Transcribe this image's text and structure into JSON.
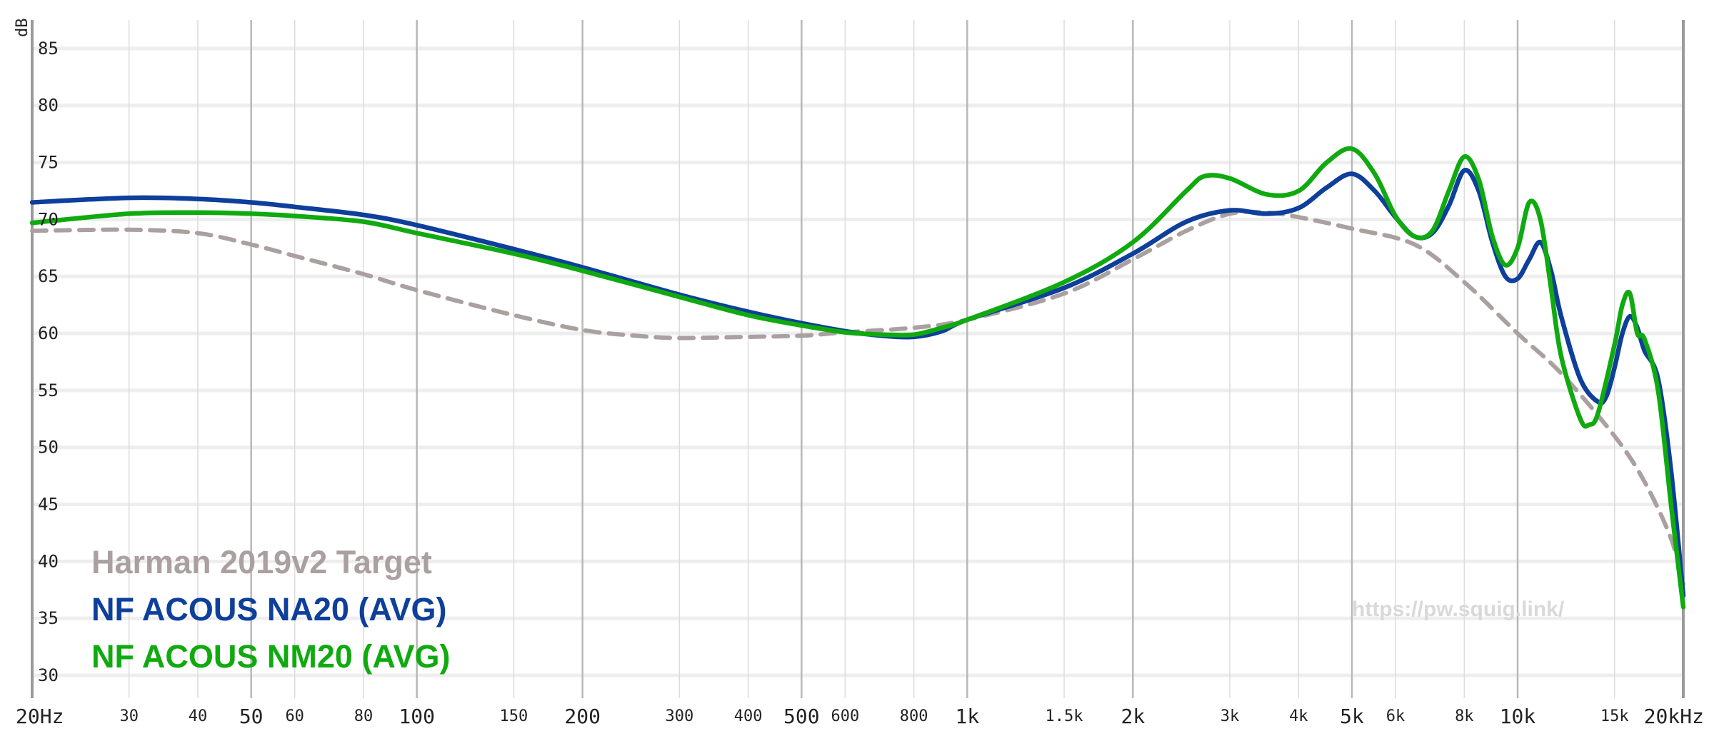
{
  "chart_data": {
    "type": "line",
    "title": "",
    "xlabel": "",
    "ylabel": "dB",
    "x_scale": "log",
    "xlim": [
      20,
      20000
    ],
    "ylim": [
      28,
      88
    ],
    "grid": true,
    "legend_position": "bottom-left",
    "watermark": "https://pw.squig.link/",
    "y_ticks": [
      {
        "value": 85,
        "label": "85"
      },
      {
        "value": 80,
        "label": "80"
      },
      {
        "value": 75,
        "label": "75"
      },
      {
        "value": 70,
        "label": "70"
      },
      {
        "value": 65,
        "label": "65"
      },
      {
        "value": 60,
        "label": "60"
      },
      {
        "value": 55,
        "label": "55"
      },
      {
        "value": 50,
        "label": "50"
      },
      {
        "value": 45,
        "label": "45"
      },
      {
        "value": 40,
        "label": "40"
      },
      {
        "value": 35,
        "label": "35"
      },
      {
        "value": 30,
        "label": "30"
      }
    ],
    "x_ticks": [
      {
        "value": 20,
        "label": "20Hz",
        "major": true
      },
      {
        "value": 30,
        "label": "30",
        "major": false
      },
      {
        "value": 40,
        "label": "40",
        "major": false
      },
      {
        "value": 50,
        "label": "50",
        "major": true
      },
      {
        "value": 60,
        "label": "60",
        "major": false
      },
      {
        "value": 80,
        "label": "80",
        "major": false
      },
      {
        "value": 100,
        "label": "100",
        "major": true
      },
      {
        "value": 150,
        "label": "150",
        "major": false
      },
      {
        "value": 200,
        "label": "200",
        "major": true
      },
      {
        "value": 300,
        "label": "300",
        "major": false
      },
      {
        "value": 400,
        "label": "400",
        "major": false
      },
      {
        "value": 500,
        "label": "500",
        "major": true
      },
      {
        "value": 600,
        "label": "600",
        "major": false
      },
      {
        "value": 800,
        "label": "800",
        "major": false
      },
      {
        "value": 1000,
        "label": "1k",
        "major": true
      },
      {
        "value": 1500,
        "label": "1.5k",
        "major": false
      },
      {
        "value": 2000,
        "label": "2k",
        "major": true
      },
      {
        "value": 3000,
        "label": "3k",
        "major": false
      },
      {
        "value": 4000,
        "label": "4k",
        "major": false
      },
      {
        "value": 5000,
        "label": "5k",
        "major": true
      },
      {
        "value": 6000,
        "label": "6k",
        "major": false
      },
      {
        "value": 8000,
        "label": "8k",
        "major": false
      },
      {
        "value": 10000,
        "label": "10k",
        "major": true
      },
      {
        "value": 15000,
        "label": "15k",
        "major": false
      },
      {
        "value": 20000,
        "label": "20kHz",
        "major": true
      }
    ],
    "series": [
      {
        "name": "Harman 2019v2 Target",
        "color": "#aba0a0",
        "dashed": true,
        "points": [
          [
            20,
            69
          ],
          [
            30,
            69.1
          ],
          [
            40,
            68.8
          ],
          [
            50,
            67.8
          ],
          [
            60,
            66.8
          ],
          [
            80,
            65.2
          ],
          [
            100,
            63.8
          ],
          [
            150,
            61.6
          ],
          [
            200,
            60.3
          ],
          [
            250,
            59.8
          ],
          [
            300,
            59.6
          ],
          [
            400,
            59.7
          ],
          [
            500,
            59.8
          ],
          [
            600,
            60.1
          ],
          [
            800,
            60.5
          ],
          [
            1000,
            61.2
          ],
          [
            1500,
            63.5
          ],
          [
            2000,
            66.5
          ],
          [
            2500,
            69
          ],
          [
            3000,
            70.5
          ],
          [
            3500,
            70.6
          ],
          [
            4000,
            70.2
          ],
          [
            5000,
            69.2
          ],
          [
            6500,
            67.8
          ],
          [
            8000,
            64.5
          ],
          [
            10000,
            60
          ],
          [
            12000,
            56.5
          ],
          [
            15000,
            51
          ],
          [
            17000,
            47
          ],
          [
            19000,
            42
          ],
          [
            20000,
            38
          ]
        ]
      },
      {
        "name": "NF ACOUS NA20 (AVG)",
        "color": "#0d3f9b",
        "dashed": false,
        "points": [
          [
            20,
            71.5
          ],
          [
            30,
            71.9
          ],
          [
            40,
            71.8
          ],
          [
            50,
            71.5
          ],
          [
            60,
            71.1
          ],
          [
            80,
            70.4
          ],
          [
            100,
            69.5
          ],
          [
            150,
            67.4
          ],
          [
            200,
            65.8
          ],
          [
            300,
            63.4
          ],
          [
            400,
            61.9
          ],
          [
            500,
            60.9
          ],
          [
            600,
            60.2
          ],
          [
            700,
            59.8
          ],
          [
            800,
            59.7
          ],
          [
            900,
            60.2
          ],
          [
            1000,
            61.2
          ],
          [
            1500,
            64
          ],
          [
            2000,
            67
          ],
          [
            2500,
            69.8
          ],
          [
            3000,
            70.8
          ],
          [
            3500,
            70.5
          ],
          [
            4000,
            71
          ],
          [
            4500,
            72.8
          ],
          [
            5000,
            74
          ],
          [
            5500,
            72.5
          ],
          [
            6000,
            70.2
          ],
          [
            6500,
            68.5
          ],
          [
            7000,
            68.8
          ],
          [
            7500,
            71.2
          ],
          [
            8000,
            74.3
          ],
          [
            8500,
            72.5
          ],
          [
            9000,
            68
          ],
          [
            9500,
            65
          ],
          [
            10000,
            64.8
          ],
          [
            10500,
            66.5
          ],
          [
            11000,
            68
          ],
          [
            11500,
            65.5
          ],
          [
            12000,
            61.5
          ],
          [
            13000,
            56
          ],
          [
            14000,
            54
          ],
          [
            14500,
            54.5
          ],
          [
            15000,
            57
          ],
          [
            15500,
            60
          ],
          [
            16000,
            61.5
          ],
          [
            16500,
            60.5
          ],
          [
            17000,
            58.5
          ],
          [
            18000,
            56
          ],
          [
            19000,
            48
          ],
          [
            20000,
            37
          ]
        ]
      },
      {
        "name": "NF ACOUS NM20 (AVG)",
        "color": "#10aa10",
        "dashed": false,
        "points": [
          [
            20,
            69.7
          ],
          [
            30,
            70.5
          ],
          [
            40,
            70.6
          ],
          [
            50,
            70.5
          ],
          [
            60,
            70.3
          ],
          [
            80,
            69.8
          ],
          [
            100,
            68.8
          ],
          [
            150,
            67
          ],
          [
            200,
            65.5
          ],
          [
            300,
            63.2
          ],
          [
            400,
            61.6
          ],
          [
            500,
            60.7
          ],
          [
            600,
            60.1
          ],
          [
            700,
            59.9
          ],
          [
            800,
            59.9
          ],
          [
            900,
            60.5
          ],
          [
            1000,
            61.2
          ],
          [
            1500,
            64.5
          ],
          [
            2000,
            68
          ],
          [
            2500,
            72.5
          ],
          [
            2700,
            73.8
          ],
          [
            3000,
            73.6
          ],
          [
            3500,
            72.2
          ],
          [
            4000,
            72.5
          ],
          [
            4500,
            75
          ],
          [
            5000,
            76.2
          ],
          [
            5500,
            74
          ],
          [
            6000,
            70.3
          ],
          [
            6500,
            68.5
          ],
          [
            7000,
            69
          ],
          [
            7500,
            72.5
          ],
          [
            8000,
            75.5
          ],
          [
            8500,
            73.5
          ],
          [
            9000,
            68.5
          ],
          [
            9500,
            66
          ],
          [
            10000,
            67.5
          ],
          [
            10500,
            71.5
          ],
          [
            11000,
            70
          ],
          [
            11500,
            64
          ],
          [
            12000,
            58
          ],
          [
            13000,
            52.5
          ],
          [
            13500,
            52
          ],
          [
            14000,
            53
          ],
          [
            15000,
            59
          ],
          [
            15500,
            62.5
          ],
          [
            16000,
            63.5
          ],
          [
            16500,
            60
          ],
          [
            17000,
            59.5
          ],
          [
            18000,
            55
          ],
          [
            19000,
            45
          ],
          [
            20000,
            36
          ]
        ]
      }
    ]
  }
}
